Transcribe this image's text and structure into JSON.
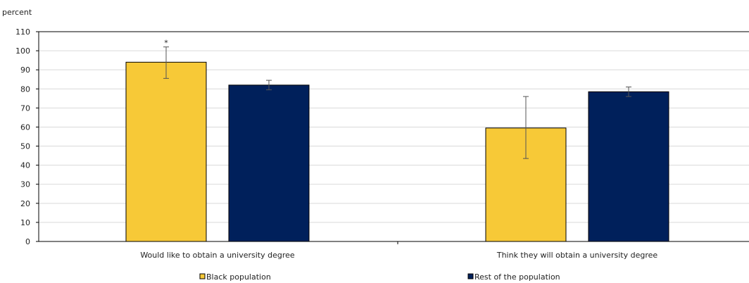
{
  "chart_data": {
    "type": "bar",
    "ylabel": "percent",
    "ylim": [
      0,
      110
    ],
    "yticks": [
      0,
      10,
      20,
      30,
      40,
      50,
      60,
      70,
      80,
      90,
      100,
      110
    ],
    "grid": true,
    "legend_position": "bottom",
    "categories": [
      "Would like to obtain a university degree",
      "Think they will obtain a university degree"
    ],
    "series": [
      {
        "name": "Black population",
        "color": "#F7C937",
        "values": [
          94,
          59.5
        ],
        "error_low": [
          85.5,
          43.5
        ],
        "error_high": [
          102,
          76
        ],
        "annotations": [
          "*",
          ""
        ]
      },
      {
        "name": "Rest of the population",
        "color": "#00205B",
        "values": [
          82,
          78.5
        ],
        "error_low": [
          79.5,
          76
        ],
        "error_high": [
          84.5,
          81
        ]
      }
    ]
  }
}
